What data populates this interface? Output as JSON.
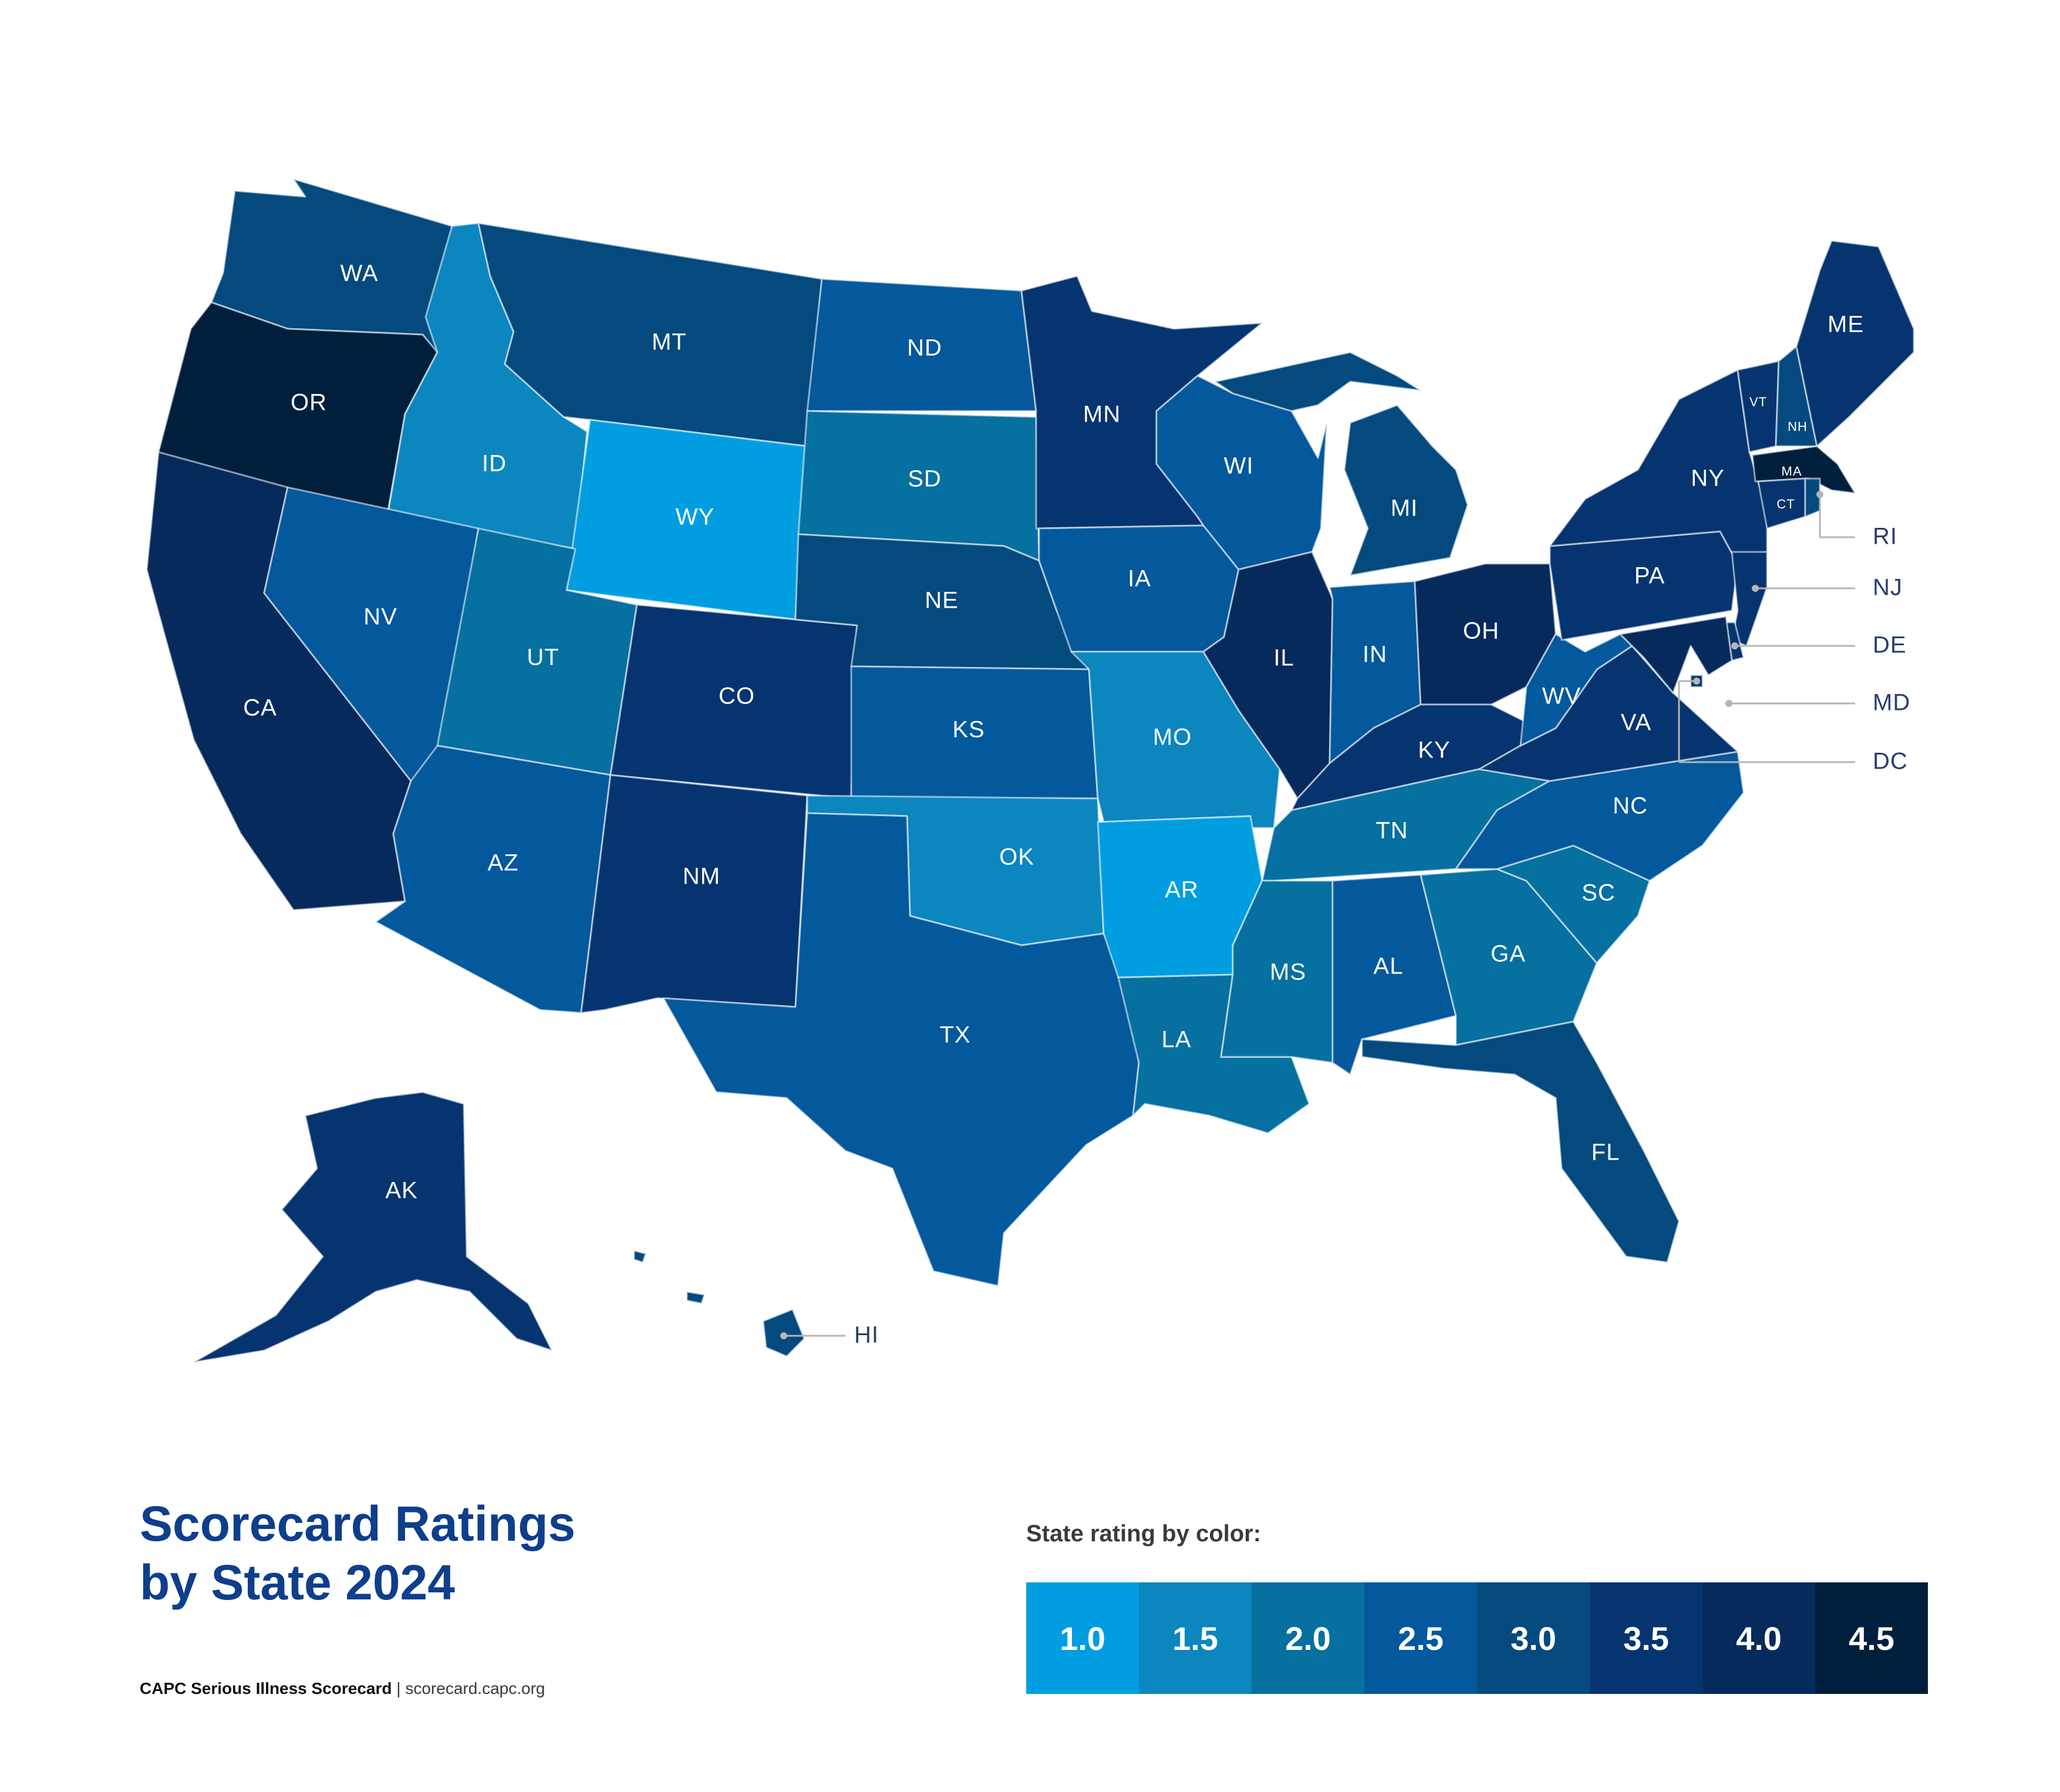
{
  "title": {
    "line1": "Scorecard Ratings",
    "line2": "by State 2024"
  },
  "source": {
    "org": "CAPC Serious Illness Scorecard",
    "separator": " | ",
    "url": "scorecard.capc.org"
  },
  "legend": {
    "title": "State rating by color:",
    "items": [
      {
        "label": "1.0",
        "color": "#009ee0"
      },
      {
        "label": "1.5",
        "color": "#0b86bf"
      },
      {
        "label": "2.0",
        "color": "#0670a0"
      },
      {
        "label": "2.5",
        "color": "#04589c"
      },
      {
        "label": "3.0",
        "color": "#044a7e"
      },
      {
        "label": "3.5",
        "color": "#053470"
      },
      {
        "label": "4.0",
        "color": "#062a5c"
      },
      {
        "label": "4.5",
        "color": "#001f3d"
      }
    ]
  },
  "states": {
    "WA": {
      "label": "WA",
      "rating": 3.0
    },
    "OR": {
      "label": "OR",
      "rating": 4.5
    },
    "CA": {
      "label": "CA",
      "rating": 4.0
    },
    "ID": {
      "label": "ID",
      "rating": 1.5
    },
    "NV": {
      "label": "NV",
      "rating": 2.5
    },
    "MT": {
      "label": "MT",
      "rating": 3.0
    },
    "WY": {
      "label": "WY",
      "rating": 1.0
    },
    "UT": {
      "label": "UT",
      "rating": 2.0
    },
    "AZ": {
      "label": "AZ",
      "rating": 2.5
    },
    "CO": {
      "label": "CO",
      "rating": 3.5
    },
    "NM": {
      "label": "NM",
      "rating": 3.5
    },
    "ND": {
      "label": "ND",
      "rating": 2.5
    },
    "SD": {
      "label": "SD",
      "rating": 2.0
    },
    "NE": {
      "label": "NE",
      "rating": 3.0
    },
    "KS": {
      "label": "KS",
      "rating": 2.5
    },
    "OK": {
      "label": "OK",
      "rating": 1.5
    },
    "TX": {
      "label": "TX",
      "rating": 2.5
    },
    "MN": {
      "label": "MN",
      "rating": 3.5
    },
    "IA": {
      "label": "IA",
      "rating": 2.5
    },
    "MO": {
      "label": "MO",
      "rating": 1.5
    },
    "AR": {
      "label": "AR",
      "rating": 1.0
    },
    "LA": {
      "label": "LA",
      "rating": 2.0
    },
    "WI": {
      "label": "WI",
      "rating": 2.5
    },
    "IL": {
      "label": "IL",
      "rating": 4.0
    },
    "MI": {
      "label": "MI",
      "rating": 3.0
    },
    "IN": {
      "label": "IN",
      "rating": 2.5
    },
    "OH": {
      "label": "OH",
      "rating": 4.0
    },
    "KY": {
      "label": "KY",
      "rating": 3.5
    },
    "TN": {
      "label": "TN",
      "rating": 2.0
    },
    "MS": {
      "label": "MS",
      "rating": 2.0
    },
    "AL": {
      "label": "AL",
      "rating": 2.5
    },
    "GA": {
      "label": "GA",
      "rating": 2.0
    },
    "FL": {
      "label": "FL",
      "rating": 3.0
    },
    "SC": {
      "label": "SC",
      "rating": 2.0
    },
    "NC": {
      "label": "NC",
      "rating": 2.5
    },
    "VA": {
      "label": "VA",
      "rating": 3.5
    },
    "WV": {
      "label": "WV",
      "rating": 2.5
    },
    "PA": {
      "label": "PA",
      "rating": 3.5
    },
    "NY": {
      "label": "NY",
      "rating": 3.5
    },
    "VT": {
      "label": "VT",
      "rating": 3.5
    },
    "NH": {
      "label": "NH",
      "rating": 3.0
    },
    "ME": {
      "label": "ME",
      "rating": 3.5
    },
    "MA": {
      "label": "MA",
      "rating": 4.5
    },
    "CT": {
      "label": "CT",
      "rating": 3.5
    },
    "RI": {
      "label": "RI",
      "rating": 3.0
    },
    "NJ": {
      "label": "NJ",
      "rating": 3.5
    },
    "DE": {
      "label": "DE",
      "rating": 3.5
    },
    "MD": {
      "label": "MD",
      "rating": 4.0
    },
    "DC": {
      "label": "DC",
      "rating": 3.5
    },
    "AK": {
      "label": "AK",
      "rating": 3.5
    },
    "HI": {
      "label": "HI",
      "rating": 3.0
    }
  }
}
